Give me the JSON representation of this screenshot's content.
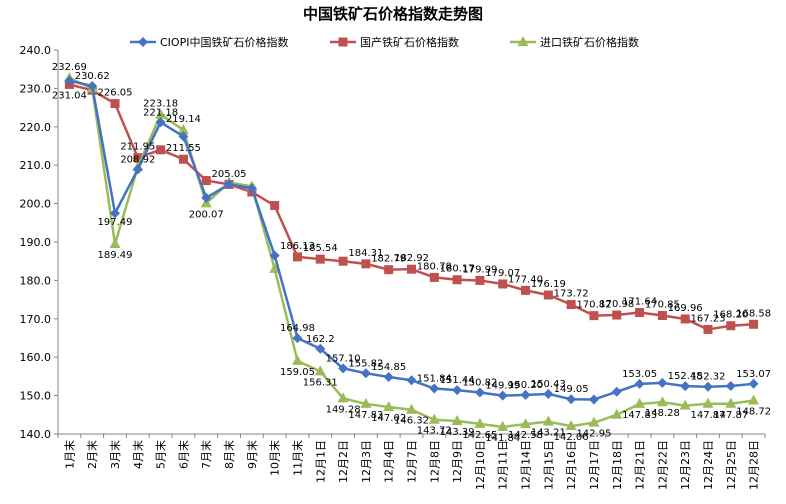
{
  "chart_data": {
    "type": "line",
    "title": "中国铁矿石价格指数走势图",
    "xlabel": "",
    "ylabel": "",
    "ylim": [
      140,
      240
    ],
    "ytick_step": 10,
    "grid": false,
    "legend_placement": "top",
    "categories": [
      "1月末",
      "2月末",
      "3月末",
      "4月末",
      "5月末",
      "6月末",
      "7月末",
      "8月末",
      "9月末",
      "10月末",
      "11月末",
      "12月1日",
      "12月2日",
      "12月3日",
      "12月4日",
      "12月7日",
      "12月8日",
      "12月9日",
      "12月10日",
      "12月11日",
      "12月14日",
      "12月15日",
      "12月16日",
      "12月17日",
      "12月18日",
      "12月21日",
      "12月22日",
      "12月23日",
      "12月24日",
      "12月25日",
      "12月28日"
    ],
    "series": [
      {
        "name": "CIOPI中国铁矿石价格指数",
        "color": "#4472C4",
        "marker": "diamond",
        "values": [
          232.0,
          230.62,
          197.49,
          208.92,
          221.18,
          217.5,
          201.5,
          205.05,
          204.0,
          186.5,
          164.98,
          162.2,
          157.1,
          155.82,
          154.85,
          154.0,
          151.84,
          151.44,
          150.82,
          149.99,
          150.2,
          150.43,
          149.05,
          149.0,
          151.0,
          153.05,
          153.3,
          152.48,
          152.32,
          152.5,
          153.07
        ],
        "labels": [
          "",
          "230.62",
          "197.49",
          "208.92",
          "221.18",
          "",
          "",
          "205.05",
          "",
          "",
          "164.98",
          "162.2",
          "157.10",
          "155.82",
          "154.85",
          "",
          "151.84",
          "151.44",
          "150.82",
          "149.99",
          "150.20",
          "150.43",
          "149.05",
          "",
          "",
          "153.05",
          "",
          "152.48",
          "152.32",
          "",
          "153.07"
        ]
      },
      {
        "name": "国产铁矿石价格指数",
        "color": "#C0504D",
        "marker": "square",
        "values": [
          231.04,
          229.5,
          226.05,
          211.95,
          214.0,
          211.55,
          206.0,
          205.0,
          203.0,
          199.5,
          186.13,
          185.54,
          185.0,
          184.31,
          182.79,
          182.92,
          180.78,
          180.17,
          179.99,
          179.07,
          177.4,
          176.19,
          173.72,
          170.82,
          170.98,
          171.64,
          170.85,
          169.96,
          167.23,
          168.2,
          168.58
        ],
        "labels": [
          "231.04",
          "",
          "226.05",
          "211.95",
          "",
          "211.55",
          "",
          "",
          "",
          "",
          "186.13",
          "185.54",
          "",
          "184.31",
          "182.79",
          "182.92",
          "180.78",
          "180.17",
          "179.99",
          "179.07",
          "177.40",
          "176.19",
          "173.72",
          "170.82",
          "170.98",
          "171.64",
          "170.85",
          "169.96",
          "167.23",
          "168.20",
          "168.58"
        ]
      },
      {
        "name": "进口铁矿石价格指数",
        "color": "#9BBB59",
        "marker": "triangle",
        "values": [
          232.69,
          230.0,
          189.49,
          209.5,
          223.18,
          219.14,
          200.07,
          205.5,
          204.5,
          183.0,
          159.05,
          156.31,
          149.28,
          147.83,
          147.02,
          146.32,
          143.72,
          143.39,
          142.65,
          141.84,
          142.58,
          143.21,
          142.06,
          142.95,
          145.0,
          147.83,
          148.28,
          147.4,
          147.87,
          147.87,
          148.72
        ],
        "labels": [
          "232.69",
          "",
          "189.49",
          "",
          "223.18",
          "219.14",
          "200.07",
          "",
          "",
          "",
          "159.05",
          "156.31",
          "149.28",
          "147.83",
          "147.02",
          "146.32",
          "143.72",
          "143.39",
          "142.65",
          "141.84",
          "142.58",
          "143.21",
          "142.06",
          "142.95",
          "",
          "147.83",
          "148.28",
          "",
          "147.87",
          "147.87",
          "148.72"
        ]
      }
    ]
  }
}
